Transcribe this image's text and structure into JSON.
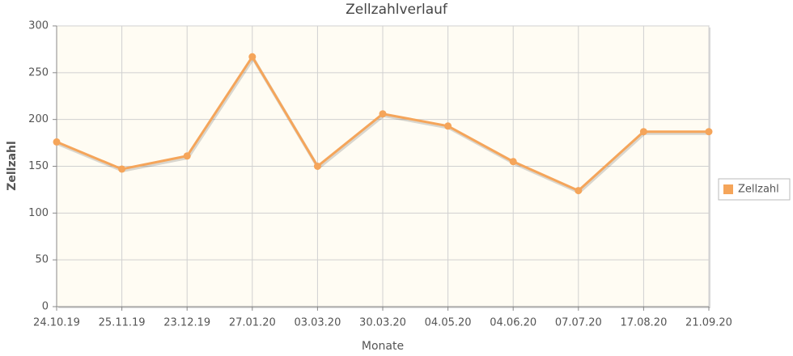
{
  "chart_data": {
    "type": "line",
    "title": "Zellzahlverlauf",
    "x_label": "Monate",
    "y_label": "Zellzahl",
    "categories": [
      "24.10.19",
      "25.11.19",
      "23.12.19",
      "27.01.20",
      "03.03.20",
      "30.03.20",
      "04.05.20",
      "04.06.20",
      "07.07.20",
      "17.08.20",
      "21.09.20"
    ],
    "series": [
      {
        "name": "Zellzahl",
        "color": "#f5a55a",
        "values": [
          176,
          147,
          161,
          267,
          150,
          206,
          193,
          155,
          124,
          187,
          187
        ]
      }
    ],
    "ylim": [
      0,
      300
    ],
    "yticks": [
      0,
      50,
      100,
      150,
      200,
      250,
      300
    ],
    "grid": true,
    "legend": "right"
  }
}
